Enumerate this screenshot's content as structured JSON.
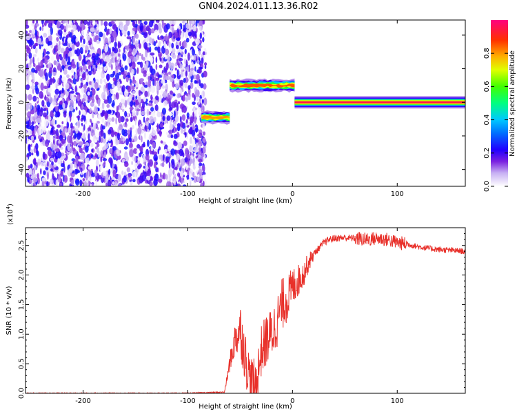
{
  "title": "GN04.2024.011.13.36.R02",
  "colors": {
    "snr_line": "#e8302a",
    "colormap": [
      "#ffffff",
      "#d9c9f5",
      "#a070ee",
      "#7a20e0",
      "#2000ff",
      "#00c8ff",
      "#00ff40",
      "#c8ff00",
      "#ffc000",
      "#ff3000",
      "#ff0080"
    ]
  },
  "chart_data": [
    {
      "type": "heatmap",
      "xlabel": "Height of straight line (km)",
      "ylabel": "Frequency (Hz)",
      "xlim": [
        -255,
        165
      ],
      "ylim": [
        -50,
        49
      ],
      "xticks": [
        -200,
        -100,
        0,
        100
      ],
      "yticks": [
        -40,
        -20,
        0,
        20,
        40
      ],
      "noise_region": {
        "x_range": [
          -255,
          -83
        ],
        "amplitude_range": [
          0.0,
          0.25
        ]
      },
      "signal_segments": [
        {
          "x_range": [
            -87,
            -60
          ],
          "frequency": -9,
          "peak_amplitude": 0.8
        },
        {
          "x_range": [
            -60,
            2
          ],
          "frequency": 10,
          "peak_amplitude": 0.85
        },
        {
          "x_range": [
            2,
            165
          ],
          "frequency": 0,
          "peak_amplitude": 0.95
        }
      ],
      "colorbar": {
        "label": "Normalized spectral amplitude",
        "range": [
          0,
          1
        ],
        "ticks": [
          0.0,
          0.2,
          0.4,
          0.6,
          0.8
        ]
      }
    },
    {
      "type": "line",
      "xlabel": "Height of straight line (km)",
      "ylabel": "SNR (10 * v/v)",
      "yscale_label": "(x10",
      "yscale_exponent": "4",
      "xlim": [
        -255,
        165
      ],
      "ylim": [
        0,
        2.8
      ],
      "xticks": [
        -200,
        -100,
        0,
        100
      ],
      "yticks": [
        0.0,
        0.5,
        1.0,
        1.5,
        2.0,
        2.5
      ],
      "x": [
        -255,
        -100,
        -65,
        -60,
        -55,
        -50,
        -45,
        -40,
        -35,
        -30,
        -25,
        -20,
        -15,
        -10,
        -5,
        0,
        5,
        10,
        15,
        20,
        25,
        30,
        35,
        40,
        50,
        60,
        70,
        80,
        90,
        100,
        110,
        120,
        130,
        140,
        150,
        165
      ],
      "values": [
        0.0,
        0.0,
        0.02,
        0.5,
        0.9,
        1.1,
        0.6,
        0.2,
        0.1,
        0.7,
        0.9,
        1.0,
        1.2,
        1.5,
        1.6,
        1.8,
        1.9,
        2.0,
        2.2,
        2.35,
        2.45,
        2.55,
        2.6,
        2.62,
        2.63,
        2.62,
        2.6,
        2.62,
        2.6,
        2.55,
        2.52,
        2.48,
        2.45,
        2.43,
        2.42,
        2.4
      ]
    }
  ]
}
